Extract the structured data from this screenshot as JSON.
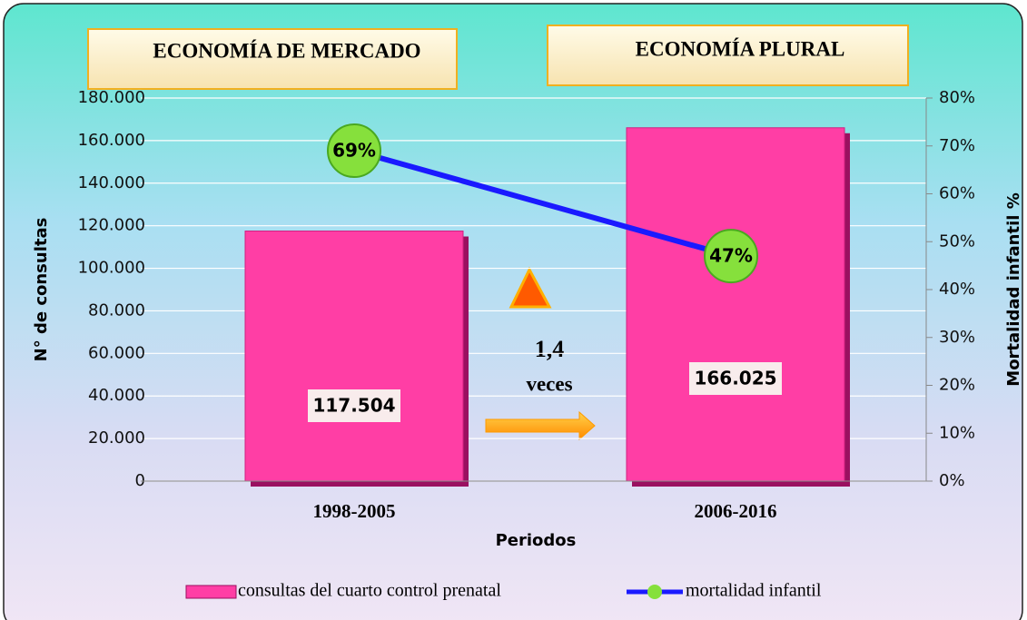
{
  "chart_data": {
    "type": "bar",
    "annotations": [
      "ECONOMÍA DE MERCADO",
      "ECONOMÍA PLURAL",
      "1,4",
      "veces"
    ],
    "x_label": "Periodos",
    "y_label": "N° de consultas",
    "y2_label": "Mortalidad infantil %",
    "categories": [
      "1998-2005",
      "2006-2016"
    ],
    "series": [
      {
        "name": "consultas del cuarto control prenatal",
        "type": "bar",
        "color": "#ff3ea5",
        "values": [
          117504,
          166025
        ],
        "value_labels": [
          "117.504",
          "166.025"
        ]
      },
      {
        "name": "mortalidad infantil",
        "type": "line",
        "axis": "y2",
        "color": "#1a1aff",
        "marker_color": "#86e03c",
        "values": [
          69,
          47
        ],
        "value_labels": [
          "69%",
          "47%"
        ]
      }
    ],
    "ylim": [
      0,
      180000
    ],
    "yticks": [
      0,
      {
        "value": 20000,
        "label": "20.000"
      },
      {
        "value": 40000,
        "label": "40.000"
      },
      {
        "value": 60000,
        "label": "60.000"
      },
      {
        "value": 80000,
        "label": "80.000"
      },
      {
        "value": 100000,
        "label": "100.000"
      },
      {
        "value": 120000,
        "label": "120.000"
      },
      {
        "value": 140000,
        "label": "140.000"
      },
      {
        "value": 160000,
        "label": "160.000"
      },
      {
        "value": 180000,
        "label": "180.000"
      }
    ],
    "y2lim": [
      0,
      80
    ],
    "y2ticks": [
      {
        "value": 0,
        "label": "0%"
      },
      {
        "value": 10,
        "label": "10%"
      },
      {
        "value": 20,
        "label": "20%"
      },
      {
        "value": 30,
        "label": "30%"
      },
      {
        "value": 40,
        "label": "40%"
      },
      {
        "value": 50,
        "label": "50%"
      },
      {
        "value": 60,
        "label": "60%"
      },
      {
        "value": 70,
        "label": "70%"
      },
      {
        "value": 80,
        "label": "80%"
      }
    ],
    "grid": true,
    "legend": "bottom"
  }
}
